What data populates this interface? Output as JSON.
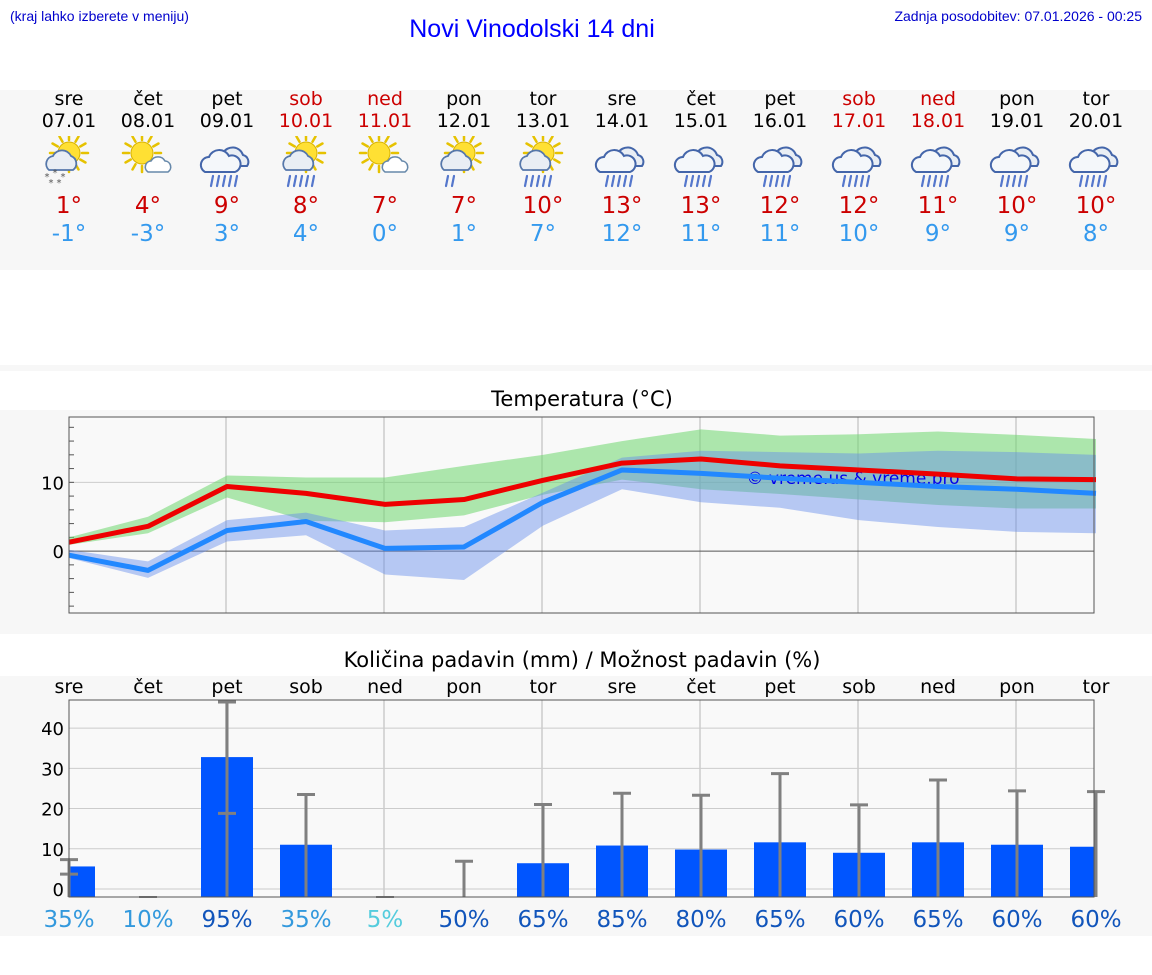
{
  "header": {
    "hint": "(kraj lahko izberete v meniju)",
    "title": "Novi Vinodolski 14 dni",
    "updated": "Zadnja posodobitev: 07.01.2026 - 00:25"
  },
  "colors": {
    "max": "#cc0000",
    "min": "#3399ee",
    "weekend": "#cc0000",
    "bar": "#0055ff",
    "maxLine": "#ee0000",
    "minLine": "#2288ff"
  },
  "days": [
    {
      "name": "sre",
      "date": "07.01",
      "weekend": false,
      "icon": "sun-cloud-snow-icon",
      "max": "1°",
      "min": "-1°"
    },
    {
      "name": "čet",
      "date": "08.01",
      "weekend": false,
      "icon": "sun-cloud-icon",
      "max": "4°",
      "min": "-3°"
    },
    {
      "name": "pet",
      "date": "09.01",
      "weekend": false,
      "icon": "rain-cloud-icon",
      "max": "9°",
      "min": "3°"
    },
    {
      "name": "sob",
      "date": "10.01",
      "weekend": true,
      "icon": "sun-cloud-rain-icon",
      "max": "8°",
      "min": "4°"
    },
    {
      "name": "ned",
      "date": "11.01",
      "weekend": true,
      "icon": "sun-cloud-icon",
      "max": "7°",
      "min": "0°"
    },
    {
      "name": "pon",
      "date": "12.01",
      "weekend": false,
      "icon": "sun-cloud-drizzle-icon",
      "max": "7°",
      "min": "1°"
    },
    {
      "name": "tor",
      "date": "13.01",
      "weekend": false,
      "icon": "sun-cloud-rain-icon",
      "max": "10°",
      "min": "7°"
    },
    {
      "name": "sre",
      "date": "14.01",
      "weekend": false,
      "icon": "rain-cloud-icon",
      "max": "13°",
      "min": "12°"
    },
    {
      "name": "čet",
      "date": "15.01",
      "weekend": false,
      "icon": "rain-cloud-icon",
      "max": "13°",
      "min": "11°"
    },
    {
      "name": "pet",
      "date": "16.01",
      "weekend": false,
      "icon": "rain-cloud-icon",
      "max": "12°",
      "min": "11°"
    },
    {
      "name": "sob",
      "date": "17.01",
      "weekend": true,
      "icon": "rain-cloud-icon",
      "max": "12°",
      "min": "10°"
    },
    {
      "name": "ned",
      "date": "18.01",
      "weekend": true,
      "icon": "rain-cloud-icon",
      "max": "11°",
      "min": "9°"
    },
    {
      "name": "pon",
      "date": "19.01",
      "weekend": false,
      "icon": "rain-cloud-icon",
      "max": "10°",
      "min": "9°"
    },
    {
      "name": "tor",
      "date": "20.01",
      "weekend": false,
      "icon": "rain-cloud-icon",
      "max": "10°",
      "min": "8°"
    }
  ],
  "chart_data": [
    {
      "type": "line",
      "title": "Temperatura (°C)",
      "xlabel": "",
      "ylabel": "",
      "ylim": [
        -9,
        19.5
      ],
      "yticks": [
        0,
        10
      ],
      "watermark": "© vreme.us & vreme.pro",
      "x": [
        0,
        1,
        2,
        3,
        4,
        5,
        6,
        7,
        8,
        9,
        10,
        11,
        12,
        13
      ],
      "series": [
        {
          "name": "max",
          "values": [
            1.3,
            3.6,
            9.4,
            8.4,
            6.8,
            7.5,
            10.3,
            12.8,
            13.4,
            12.4,
            11.8,
            11.2,
            10.5,
            10.4
          ]
        },
        {
          "name": "min",
          "values": [
            -0.6,
            -2.8,
            3.0,
            4.3,
            0.4,
            0.6,
            7.1,
            11.8,
            11.3,
            10.6,
            10.0,
            9.4,
            9.0,
            8.4
          ]
        }
      ],
      "bands": [
        {
          "name": "max-range",
          "low": [
            0.9,
            2.6,
            7.8,
            4.4,
            4.2,
            5.2,
            8.2,
            10.4,
            9.0,
            8.3,
            7.5,
            6.7,
            6.2,
            6.2
          ],
          "high": [
            2.0,
            5.0,
            11.0,
            10.7,
            10.7,
            12.4,
            14.0,
            16.0,
            17.7,
            16.8,
            17.0,
            17.4,
            16.9,
            16.3
          ]
        },
        {
          "name": "min-range",
          "low": [
            -1.0,
            -3.9,
            1.4,
            2.3,
            -3.4,
            -4.2,
            3.7,
            9.0,
            7.1,
            6.3,
            4.5,
            3.5,
            2.8,
            2.6
          ],
          "high": [
            0.2,
            -1.5,
            4.5,
            5.6,
            3.0,
            3.5,
            8.5,
            13.6,
            14.6,
            14.4,
            14.2,
            14.6,
            14.4,
            14.0
          ]
        }
      ]
    },
    {
      "type": "bar",
      "title": "Količina padavin (mm) / Možnost padavin (%)",
      "xlabel": "",
      "ylabel": "",
      "ylim": [
        -2,
        47
      ],
      "yticks": [
        0,
        10,
        20,
        30,
        40
      ],
      "categories": [
        "sre",
        "čet",
        "pet",
        "sob",
        "ned",
        "pon",
        "tor",
        "sre",
        "čet",
        "pet",
        "sob",
        "ned",
        "pon",
        "tor"
      ],
      "values": [
        5.6,
        0,
        32.8,
        11.0,
        0,
        0,
        6.4,
        10.8,
        9.8,
        11.6,
        9.0,
        11.6,
        11.0,
        10.5
      ],
      "err_high": [
        7.3,
        0,
        46.5,
        23.5,
        0,
        6.9,
        21.0,
        23.8,
        23.3,
        28.7,
        20.9,
        27.1,
        24.4,
        24.2
      ],
      "err_low": [
        3.7,
        0,
        18.8,
        0,
        0,
        0,
        0,
        0,
        0,
        0,
        0,
        0,
        0,
        0
      ],
      "probability": [
        "35%",
        "10%",
        "95%",
        "35%",
        "5%",
        "50%",
        "65%",
        "85%",
        "80%",
        "65%",
        "60%",
        "65%",
        "60%",
        "60%"
      ],
      "probability_colors": [
        "#3399dd",
        "#3399dd",
        "#1155bb",
        "#3399dd",
        "#55ccdd",
        "#1155bb",
        "#1155bb",
        "#1155bb",
        "#1155bb",
        "#1155bb",
        "#1155bb",
        "#1155bb",
        "#1155bb",
        "#1155bb"
      ]
    }
  ]
}
